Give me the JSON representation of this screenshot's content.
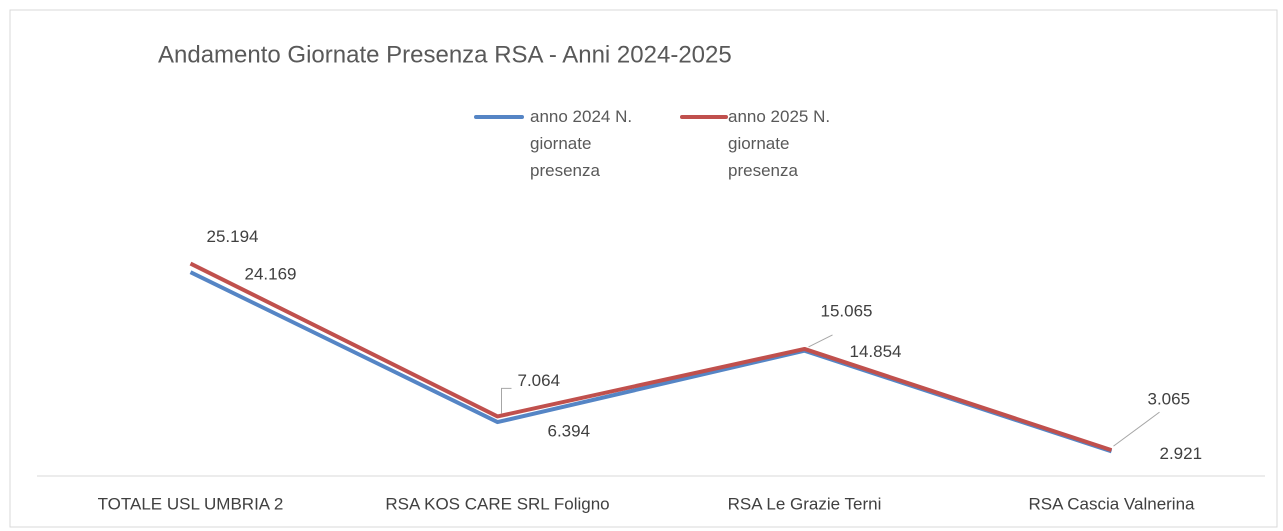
{
  "chart_data": {
    "type": "line",
    "title": "Andamento Giornate Presenza RSA - Anni 2024-2025",
    "categories": [
      "TOTALE USL UMBRIA 2",
      "RSA KOS CARE SRL Foligno",
      "RSA Le Grazie Terni",
      "RSA Cascia Valnerina"
    ],
    "series": [
      {
        "name": "anno 2024 N. giornate presenza",
        "color": "#5585c5",
        "values": [
          24169,
          6394,
          14854,
          2921
        ],
        "value_labels": [
          "24.169",
          "6.394",
          "14.854",
          "2.921"
        ]
      },
      {
        "name": "anno 2025 N. giornate presenza",
        "color": "#c0504d",
        "values": [
          25194,
          7064,
          15065,
          3065
        ],
        "value_labels": [
          "25.194",
          "7.064",
          "15.065",
          "3.065"
        ]
      }
    ],
    "ylim": [
      0,
      30000
    ],
    "legend": "top"
  }
}
